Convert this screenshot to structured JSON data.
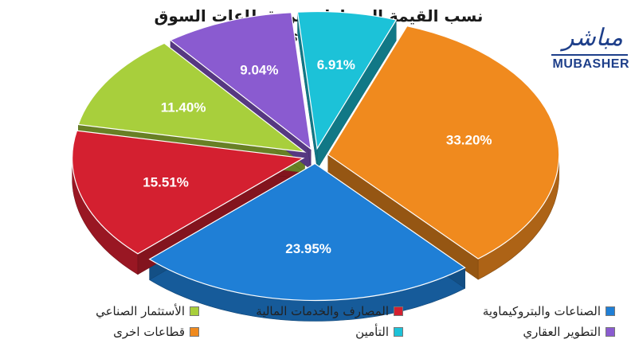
{
  "header": {
    "title": "نسب القيمة المتداولة بين قطاعات السوق السعودي"
  },
  "logo": {
    "arabic": "مباشر",
    "english": "MUBASHER"
  },
  "chart_data": {
    "type": "pie",
    "title": "نسب القيمة المتداولة بين قطاعات السوق السعودي",
    "slices": [
      {
        "label": "قطاعات اخرى",
        "value": 33.2,
        "value_label": "33.20%",
        "color": "#f08a1e"
      },
      {
        "label": "الصناعات والبتروكيماوية",
        "value": 23.95,
        "value_label": "23.95%",
        "color": "#1f7fd6"
      },
      {
        "label": "المصارف والخدمات المالية",
        "value": 15.51,
        "value_label": "15.51%",
        "color": "#d42030"
      },
      {
        "label": "الأستثمار الصناعي",
        "value": 11.4,
        "value_label": "11.40%",
        "color": "#a8cf3c"
      },
      {
        "label": "التطوير العقاري",
        "value": 9.04,
        "value_label": "9.04%",
        "color": "#8a5bd0"
      },
      {
        "label": "التأمين",
        "value": 6.91,
        "value_label": "6.91%",
        "color": "#1cc2d8"
      }
    ],
    "legend_placement": "bottom",
    "style": "3d-exploded"
  }
}
